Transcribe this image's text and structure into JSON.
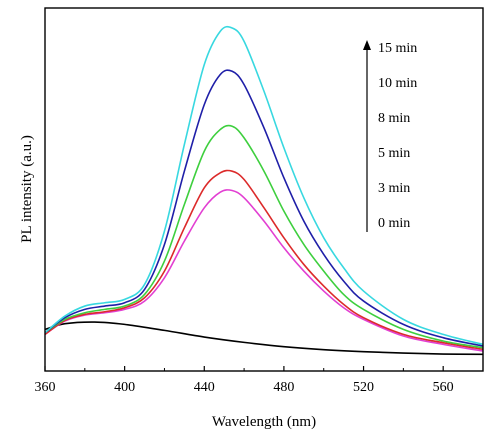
{
  "chart_data": {
    "type": "line",
    "xlabel": "Wavelength (nm)",
    "ylabel": "PL intensity (a.u.)",
    "xlim": [
      360,
      580
    ],
    "ylim": [
      0,
      100
    ],
    "xticks": [
      360,
      400,
      440,
      480,
      520,
      560
    ],
    "y_tick_labels": false,
    "grid": false,
    "legend": {
      "placement": "top-right",
      "entries": [
        "15 min",
        "10 min",
        "8 min",
        "5 min",
        "3 min",
        "0 min"
      ],
      "arrow": "up"
    },
    "series": [
      {
        "name": "0 min",
        "color": "#000000",
        "x": [
          360,
          370,
          385,
          400,
          420,
          440,
          460,
          480,
          500,
          520,
          540,
          560,
          580
        ],
        "y": [
          12.5,
          14.2,
          14.7,
          14.0,
          12.2,
          10.2,
          8.6,
          7.3,
          6.4,
          5.8,
          5.4,
          5.1,
          5.0
        ]
      },
      {
        "name": "3 min",
        "color": "#e23fd2",
        "x": [
          360,
          370,
          380,
          390,
          400,
          410,
          420,
          430,
          440,
          448,
          454,
          460,
          470,
          480,
          490,
          500,
          510,
          520,
          540,
          560,
          580
        ],
        "y": [
          11,
          15,
          16.8,
          17.5,
          18.5,
          21,
          28,
          39,
          49,
          53.7,
          54.2,
          52,
          45,
          37,
          30,
          24,
          19,
          15.5,
          10.5,
          8,
          6
        ]
      },
      {
        "name": "5 min",
        "color": "#dc2a2a",
        "x": [
          360,
          370,
          380,
          390,
          400,
          410,
          420,
          430,
          440,
          448,
          454,
          460,
          470,
          480,
          490,
          500,
          510,
          520,
          540,
          560,
          580
        ],
        "y": [
          11,
          15.2,
          17,
          17.8,
          19,
          22,
          30,
          43,
          55,
          59.5,
          60,
          57.5,
          49,
          40,
          32,
          25.5,
          20,
          16,
          11,
          8.5,
          6.5
        ]
      },
      {
        "name": "8 min",
        "color": "#3ecf3e",
        "x": [
          360,
          370,
          380,
          390,
          400,
          410,
          420,
          430,
          440,
          448,
          454,
          460,
          470,
          480,
          490,
          500,
          510,
          520,
          540,
          560,
          580
        ],
        "y": [
          11.5,
          15.5,
          17.5,
          18.5,
          19.5,
          23,
          33,
          50,
          66,
          72.5,
          73.5,
          70,
          60,
          48,
          38,
          30,
          23,
          18.5,
          12.5,
          9,
          7
        ]
      },
      {
        "name": "10 min",
        "color": "#1f1fa8",
        "x": [
          360,
          370,
          380,
          390,
          400,
          410,
          420,
          430,
          440,
          448,
          454,
          460,
          470,
          480,
          490,
          500,
          510,
          520,
          540,
          560,
          580
        ],
        "y": [
          11.5,
          16,
          18.5,
          19.5,
          20.5,
          24.5,
          38,
          60,
          80,
          89,
          90,
          86,
          73,
          58,
          45,
          35,
          27,
          21,
          14,
          10,
          7.5
        ]
      },
      {
        "name": "15 min",
        "color": "#38d8e0",
        "x": [
          360,
          370,
          380,
          390,
          400,
          410,
          420,
          430,
          440,
          448,
          454,
          460,
          470,
          480,
          490,
          500,
          510,
          520,
          540,
          560,
          580
        ],
        "y": [
          11.5,
          16.5,
          19.5,
          20.5,
          21.5,
          26,
          42,
          68,
          92,
          102,
          103,
          99,
          84,
          67,
          52,
          40,
          31,
          24,
          15.5,
          11,
          8
        ]
      }
    ]
  }
}
